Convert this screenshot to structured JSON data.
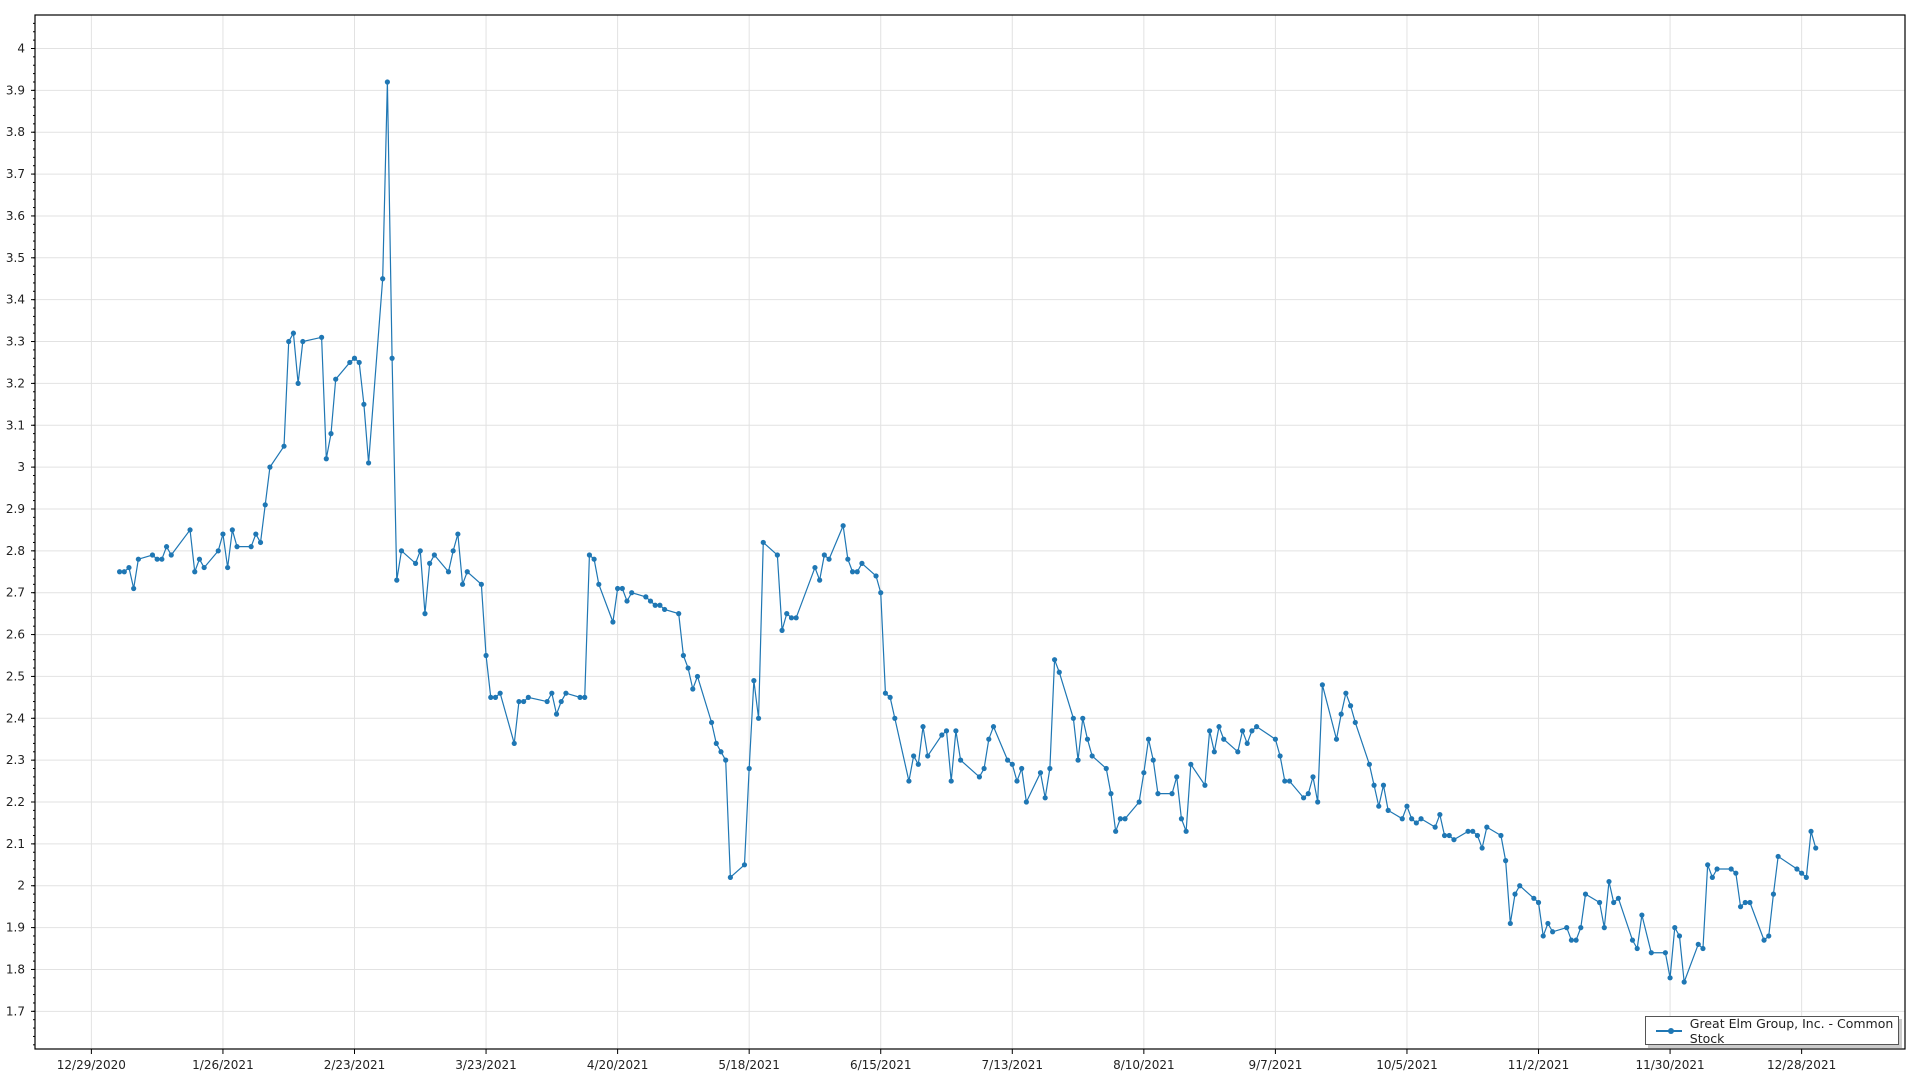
{
  "chart_data": {
    "type": "line",
    "title": "",
    "xlabel": "",
    "ylabel": "",
    "grid": true,
    "legend_position": "bottom-right",
    "color": "#1f77b4",
    "xlim": [
      "12/17/2020",
      "1/19/2022"
    ],
    "ylim": [
      1.61,
      4.08
    ],
    "x_ticks": [
      "12/29/2020",
      "1/26/2021",
      "2/23/2021",
      "3/23/2021",
      "4/20/2021",
      "5/18/2021",
      "6/15/2021",
      "7/13/2021",
      "8/10/2021",
      "9/7/2021",
      "10/5/2021",
      "11/2/2021",
      "11/30/2021",
      "12/28/2021"
    ],
    "y_ticks": [
      "1.7",
      "1.8",
      "1.9",
      "2",
      "2.1",
      "2.2",
      "2.3",
      "2.4",
      "2.5",
      "2.6",
      "2.7",
      "2.8",
      "2.9",
      "3",
      "3.1",
      "3.2",
      "3.3",
      "3.4",
      "3.5",
      "3.6",
      "3.7",
      "3.8",
      "3.9",
      "4"
    ],
    "series": [
      {
        "name": "Great Elm Group, Inc.  - Common Stock",
        "x": [
          "1/4/2021",
          "1/5/2021",
          "1/6/2021",
          "1/7/2021",
          "1/8/2021",
          "1/11/2021",
          "1/12/2021",
          "1/13/2021",
          "1/14/2021",
          "1/15/2021",
          "1/19/2021",
          "1/20/2021",
          "1/21/2021",
          "1/22/2021",
          "1/25/2021",
          "1/26/2021",
          "1/27/2021",
          "1/28/2021",
          "1/29/2021",
          "2/1/2021",
          "2/2/2021",
          "2/3/2021",
          "2/4/2021",
          "2/5/2021",
          "2/8/2021",
          "2/9/2021",
          "2/10/2021",
          "2/11/2021",
          "2/12/2021",
          "2/16/2021",
          "2/17/2021",
          "2/18/2021",
          "2/19/2021",
          "2/22/2021",
          "2/23/2021",
          "2/24/2021",
          "2/25/2021",
          "2/26/2021",
          "3/1/2021",
          "3/2/2021",
          "3/3/2021",
          "3/4/2021",
          "3/5/2021",
          "3/8/2021",
          "3/9/2021",
          "3/10/2021",
          "3/11/2021",
          "3/12/2021",
          "3/15/2021",
          "3/16/2021",
          "3/17/2021",
          "3/18/2021",
          "3/19/2021",
          "3/22/2021",
          "3/23/2021",
          "3/24/2021",
          "3/25/2021",
          "3/26/2021",
          "3/29/2021",
          "3/30/2021",
          "3/31/2021",
          "4/1/2021",
          "4/5/2021",
          "4/6/2021",
          "4/7/2021",
          "4/8/2021",
          "4/9/2021",
          "4/12/2021",
          "4/13/2021",
          "4/14/2021",
          "4/15/2021",
          "4/16/2021",
          "4/19/2021",
          "4/20/2021",
          "4/21/2021",
          "4/22/2021",
          "4/23/2021",
          "4/26/2021",
          "4/27/2021",
          "4/28/2021",
          "4/29/2021",
          "4/30/2021",
          "5/3/2021",
          "5/4/2021",
          "5/5/2021",
          "5/6/2021",
          "5/7/2021",
          "5/10/2021",
          "5/11/2021",
          "5/12/2021",
          "5/13/2021",
          "5/14/2021",
          "5/17/2021",
          "5/18/2021",
          "5/19/2021",
          "5/20/2021",
          "5/21/2021",
          "5/24/2021",
          "5/25/2021",
          "5/26/2021",
          "5/27/2021",
          "5/28/2021",
          "6/1/2021",
          "6/2/2021",
          "6/3/2021",
          "6/4/2021",
          "6/7/2021",
          "6/8/2021",
          "6/9/2021",
          "6/10/2021",
          "6/11/2021",
          "6/14/2021",
          "6/15/2021",
          "6/16/2021",
          "6/17/2021",
          "6/18/2021",
          "6/21/2021",
          "6/22/2021",
          "6/23/2021",
          "6/24/2021",
          "6/25/2021",
          "6/28/2021",
          "6/29/2021",
          "6/30/2021",
          "7/1/2021",
          "7/2/2021",
          "7/6/2021",
          "7/7/2021",
          "7/8/2021",
          "7/9/2021",
          "7/12/2021",
          "7/13/2021",
          "7/14/2021",
          "7/15/2021",
          "7/16/2021",
          "7/19/2021",
          "7/20/2021",
          "7/21/2021",
          "7/22/2021",
          "7/23/2021",
          "7/26/2021",
          "7/27/2021",
          "7/28/2021",
          "7/29/2021",
          "7/30/2021",
          "8/2/2021",
          "8/3/2021",
          "8/4/2021",
          "8/5/2021",
          "8/6/2021",
          "8/9/2021",
          "8/10/2021",
          "8/11/2021",
          "8/12/2021",
          "8/13/2021",
          "8/16/2021",
          "8/17/2021",
          "8/18/2021",
          "8/19/2021",
          "8/20/2021",
          "8/23/2021",
          "8/24/2021",
          "8/25/2021",
          "8/26/2021",
          "8/27/2021",
          "8/30/2021",
          "8/31/2021",
          "9/1/2021",
          "9/2/2021",
          "9/3/2021",
          "9/7/2021",
          "9/8/2021",
          "9/9/2021",
          "9/10/2021",
          "9/13/2021",
          "9/14/2021",
          "9/15/2021",
          "9/16/2021",
          "9/17/2021",
          "9/20/2021",
          "9/21/2021",
          "9/22/2021",
          "9/23/2021",
          "9/24/2021",
          "9/27/2021",
          "9/28/2021",
          "9/29/2021",
          "9/30/2021",
          "10/1/2021",
          "10/4/2021",
          "10/5/2021",
          "10/6/2021",
          "10/7/2021",
          "10/8/2021",
          "10/11/2021",
          "10/12/2021",
          "10/13/2021",
          "10/14/2021",
          "10/15/2021",
          "10/18/2021",
          "10/19/2021",
          "10/20/2021",
          "10/21/2021",
          "10/22/2021",
          "10/25/2021",
          "10/26/2021",
          "10/27/2021",
          "10/28/2021",
          "10/29/2021",
          "11/1/2021",
          "11/2/2021",
          "11/3/2021",
          "11/4/2021",
          "11/5/2021",
          "11/8/2021",
          "11/9/2021",
          "11/10/2021",
          "11/11/2021",
          "11/12/2021",
          "11/15/2021",
          "11/16/2021",
          "11/17/2021",
          "11/18/2021",
          "11/19/2021",
          "11/22/2021",
          "11/23/2021",
          "11/24/2021",
          "11/26/2021",
          "11/29/2021",
          "11/30/2021",
          "12/1/2021",
          "12/2/2021",
          "12/3/2021",
          "12/6/2021",
          "12/7/2021",
          "12/8/2021",
          "12/9/2021",
          "12/10/2021",
          "12/13/2021",
          "12/14/2021",
          "12/15/2021",
          "12/16/2021",
          "12/17/2021",
          "12/20/2021",
          "12/21/2021",
          "12/22/2021",
          "12/23/2021",
          "12/27/2021",
          "12/28/2021",
          "12/29/2021",
          "12/30/2021",
          "12/31/2021"
        ],
        "y": [
          2.75,
          2.75,
          2.76,
          2.71,
          2.78,
          2.79,
          2.78,
          2.78,
          2.81,
          2.79,
          2.85,
          2.75,
          2.78,
          2.76,
          2.8,
          2.84,
          2.76,
          2.85,
          2.81,
          2.81,
          2.84,
          2.82,
          2.91,
          3.0,
          3.05,
          3.3,
          3.32,
          3.2,
          3.3,
          3.31,
          3.02,
          3.08,
          3.21,
          3.25,
          3.26,
          3.25,
          3.15,
          3.01,
          3.45,
          3.92,
          3.26,
          2.73,
          2.8,
          2.77,
          2.8,
          2.65,
          2.77,
          2.79,
          2.75,
          2.8,
          2.84,
          2.72,
          2.75,
          2.72,
          2.55,
          2.45,
          2.45,
          2.46,
          2.34,
          2.44,
          2.44,
          2.45,
          2.44,
          2.46,
          2.41,
          2.44,
          2.46,
          2.45,
          2.45,
          2.79,
          2.78,
          2.72,
          2.63,
          2.71,
          2.71,
          2.68,
          2.7,
          2.69,
          2.68,
          2.67,
          2.67,
          2.66,
          2.65,
          2.55,
          2.52,
          2.47,
          2.5,
          2.39,
          2.34,
          2.32,
          2.3,
          2.02,
          2.05,
          2.28,
          2.49,
          2.4,
          2.82,
          2.79,
          2.61,
          2.65,
          2.64,
          2.64,
          2.76,
          2.73,
          2.79,
          2.78,
          2.86,
          2.78,
          2.75,
          2.75,
          2.77,
          2.74,
          2.7,
          2.46,
          2.45,
          2.4,
          2.25,
          2.31,
          2.29,
          2.38,
          2.31,
          2.36,
          2.37,
          2.25,
          2.37,
          2.3,
          2.26,
          2.28,
          2.35,
          2.38,
          2.3,
          2.29,
          2.25,
          2.28,
          2.2,
          2.27,
          2.21,
          2.28,
          2.54,
          2.51,
          2.4,
          2.3,
          2.4,
          2.35,
          2.31,
          2.28,
          2.22,
          2.13,
          2.16,
          2.16,
          2.2,
          2.27,
          2.35,
          2.3,
          2.22,
          2.22,
          2.26,
          2.16,
          2.13,
          2.29,
          2.24,
          2.37,
          2.32,
          2.38,
          2.35,
          2.32,
          2.37,
          2.34,
          2.37,
          2.38,
          2.35,
          2.31,
          2.25,
          2.25,
          2.21,
          2.22,
          2.26,
          2.2,
          2.48,
          2.35,
          2.41,
          2.46,
          2.43,
          2.39,
          2.29,
          2.24,
          2.19,
          2.24,
          2.18,
          2.16,
          2.19,
          2.16,
          2.15,
          2.16,
          2.14,
          2.17,
          2.12,
          2.12,
          2.11,
          2.13,
          2.13,
          2.12,
          2.09,
          2.14,
          2.12,
          2.06,
          1.91,
          1.98,
          2.0,
          1.97,
          1.96,
          1.88,
          1.91,
          1.89,
          1.9,
          1.87,
          1.87,
          1.9,
          1.98,
          1.96,
          1.9,
          2.01,
          1.96,
          1.97,
          1.87,
          1.85,
          1.93,
          1.84,
          1.84,
          1.78,
          1.9,
          1.88,
          1.77,
          1.86,
          1.85,
          2.05,
          2.02,
          2.04,
          2.04,
          2.03,
          1.95,
          1.96,
          1.96,
          1.87,
          1.88,
          1.98,
          2.07,
          2.04,
          2.03,
          2.02,
          2.13,
          2.09
        ]
      }
    ]
  }
}
